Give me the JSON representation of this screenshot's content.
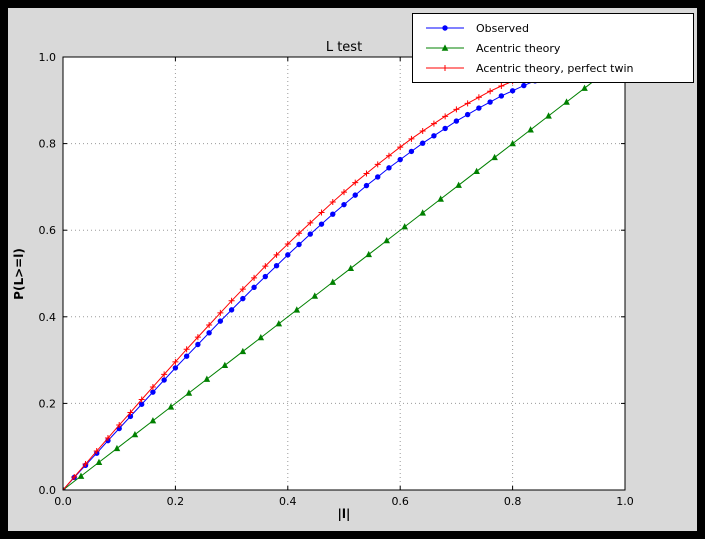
{
  "colors": {
    "frame": "#000000",
    "figure_background": "#d9d9d9",
    "plot_background": "#ffffff",
    "grid": "#9b9b9b",
    "axis": "#000000"
  },
  "chart_data": {
    "type": "line",
    "title": "L test",
    "xlabel": "|l|",
    "ylabel": "P(L>=l)",
    "xlim": [
      0.0,
      1.0
    ],
    "ylim": [
      0.0,
      1.0
    ],
    "xtick_labels": [
      "0.0",
      "0.2",
      "0.4",
      "0.6",
      "0.8",
      "1.0"
    ],
    "ytick_labels": [
      "0.0",
      "0.2",
      "0.4",
      "0.6",
      "0.8",
      "1.0"
    ],
    "grid": "dotted",
    "legend_position": "upper right, overlapping top edge of axes",
    "series": [
      {
        "name": "Observed",
        "color": "#0000ff",
        "marker": "circle",
        "x": [
          0.0,
          0.02,
          0.04,
          0.06,
          0.08,
          0.1,
          0.12,
          0.14,
          0.16,
          0.18,
          0.2,
          0.22,
          0.24,
          0.26,
          0.28,
          0.3,
          0.32,
          0.34,
          0.36,
          0.38,
          0.4,
          0.42,
          0.44,
          0.46,
          0.48,
          0.5,
          0.52,
          0.54,
          0.56,
          0.58,
          0.6,
          0.62,
          0.64,
          0.66,
          0.68,
          0.7,
          0.72,
          0.74,
          0.76,
          0.78,
          0.8,
          0.82,
          0.84,
          0.86
        ],
        "y": [
          0.0,
          0.029,
          0.057,
          0.085,
          0.114,
          0.142,
          0.17,
          0.198,
          0.226,
          0.254,
          0.282,
          0.309,
          0.336,
          0.363,
          0.39,
          0.416,
          0.442,
          0.468,
          0.493,
          0.518,
          0.543,
          0.567,
          0.591,
          0.614,
          0.637,
          0.659,
          0.681,
          0.703,
          0.723,
          0.744,
          0.763,
          0.782,
          0.801,
          0.818,
          0.835,
          0.852,
          0.867,
          0.882,
          0.896,
          0.91,
          0.922,
          0.934,
          0.945,
          0.955
        ]
      },
      {
        "name": "Acentric theory",
        "color": "#008000",
        "marker": "triangle",
        "x": [
          0.0,
          0.032,
          0.064,
          0.096,
          0.128,
          0.16,
          0.192,
          0.224,
          0.256,
          0.288,
          0.32,
          0.352,
          0.384,
          0.416,
          0.448,
          0.48,
          0.512,
          0.544,
          0.576,
          0.608,
          0.64,
          0.672,
          0.704,
          0.736,
          0.768,
          0.8,
          0.832,
          0.864,
          0.896,
          0.928,
          0.96
        ],
        "y": [
          0.0,
          0.032,
          0.064,
          0.096,
          0.128,
          0.16,
          0.192,
          0.224,
          0.256,
          0.288,
          0.32,
          0.352,
          0.384,
          0.416,
          0.448,
          0.48,
          0.512,
          0.544,
          0.576,
          0.608,
          0.64,
          0.672,
          0.704,
          0.736,
          0.768,
          0.8,
          0.832,
          0.864,
          0.896,
          0.928,
          0.96
        ]
      },
      {
        "name": "Acentric theory, perfect twin",
        "color": "#ff0000",
        "marker": "plus",
        "x": [
          0.0,
          0.02,
          0.04,
          0.06,
          0.08,
          0.1,
          0.12,
          0.14,
          0.16,
          0.18,
          0.2,
          0.22,
          0.24,
          0.26,
          0.28,
          0.3,
          0.32,
          0.34,
          0.36,
          0.38,
          0.4,
          0.42,
          0.44,
          0.46,
          0.48,
          0.5,
          0.52,
          0.54,
          0.56,
          0.58,
          0.6,
          0.62,
          0.64,
          0.66,
          0.68,
          0.7,
          0.72,
          0.74,
          0.76,
          0.78,
          0.8,
          0.82,
          0.84,
          0.86
        ],
        "y": [
          0.0,
          0.03,
          0.06,
          0.09,
          0.12,
          0.15,
          0.179,
          0.209,
          0.238,
          0.267,
          0.296,
          0.325,
          0.353,
          0.381,
          0.409,
          0.437,
          0.464,
          0.49,
          0.517,
          0.543,
          0.568,
          0.593,
          0.617,
          0.641,
          0.665,
          0.688,
          0.71,
          0.731,
          0.752,
          0.772,
          0.792,
          0.811,
          0.829,
          0.846,
          0.863,
          0.879,
          0.893,
          0.907,
          0.921,
          0.933,
          0.944,
          0.954,
          0.964,
          0.972
        ]
      }
    ]
  }
}
